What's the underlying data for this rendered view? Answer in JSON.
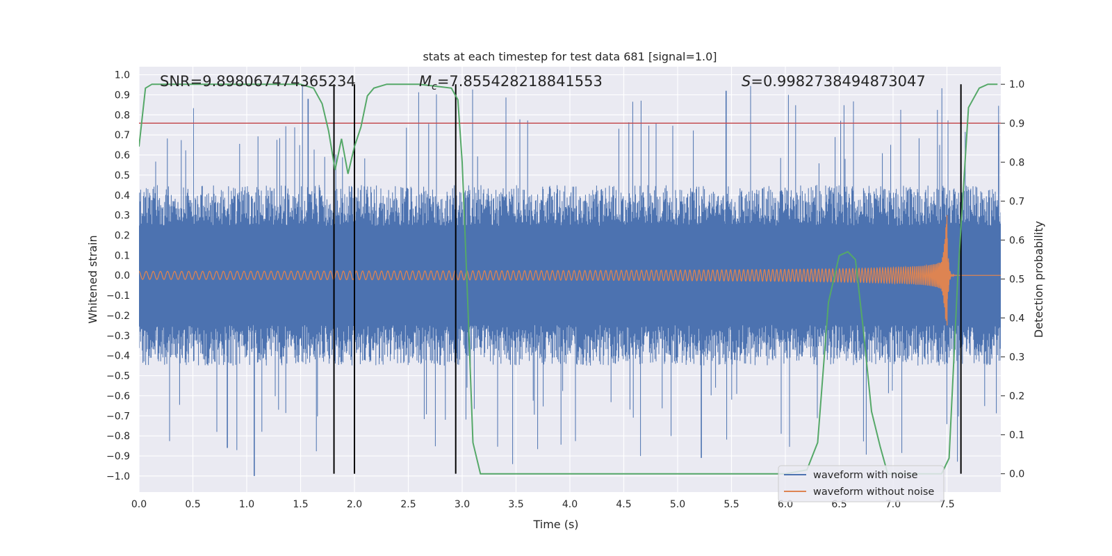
{
  "chart_data": {
    "type": "line",
    "title": "stats at each timestep for test data 681 [signal=1.0]",
    "xlabel": "Time (s)",
    "ylabel": "Whitened strain",
    "y2label": "Detection probability",
    "xlim": [
      0.0,
      8.0
    ],
    "ylim": [
      -1.08,
      1.04
    ],
    "y2lim": [
      -0.047,
      1.045
    ],
    "xticks": [
      "0.0",
      "0.5",
      "1.0",
      "1.5",
      "2.0",
      "2.5",
      "3.0",
      "3.5",
      "4.0",
      "4.5",
      "5.0",
      "5.5",
      "6.0",
      "6.5",
      "7.0",
      "7.5"
    ],
    "yticks": [
      "1.0",
      "0.9",
      "0.8",
      "0.7",
      "0.6",
      "0.5",
      "0.4",
      "0.3",
      "0.2",
      "0.1",
      "0.0",
      "−0.1",
      "−0.2",
      "−0.3",
      "−0.4",
      "−0.5",
      "−0.6",
      "−0.7",
      "−0.8",
      "−0.9",
      "−1.0"
    ],
    "y2ticks": [
      "1.0",
      "0.9",
      "0.8",
      "0.7",
      "0.6",
      "0.5",
      "0.4",
      "0.3",
      "0.2",
      "0.1",
      "0.0"
    ],
    "stats": {
      "snr_label": "SNR=9.898067474365234",
      "mc_prefix": "M",
      "mc_sub": "c",
      "mc_value": "=7.855428218841553",
      "s_prefix": "S",
      "s_value": "=0.9982738494873047"
    },
    "series": [
      {
        "name": "waveform with noise",
        "color": "#4c72b0",
        "kind": "noise",
        "amplitude_typical": 0.45,
        "amplitude_peak": 1.0
      },
      {
        "name": "waveform without noise",
        "color": "#dd8452",
        "kind": "chirp",
        "t_merger": 7.5,
        "peak_amplitude": 0.3,
        "initial_amplitude": 0.02
      },
      {
        "name": "detection probability",
        "color": "#55a868",
        "axis": "right",
        "x": [
          0.0,
          0.06,
          0.12,
          0.5,
          1.0,
          1.5,
          1.62,
          1.7,
          1.76,
          1.82,
          1.88,
          1.94,
          2.0,
          2.06,
          2.12,
          2.18,
          2.3,
          2.6,
          2.9,
          2.96,
          3.0,
          3.05,
          3.1,
          3.17,
          3.25,
          4.0,
          5.0,
          6.0,
          6.2,
          6.3,
          6.4,
          6.5,
          6.58,
          6.65,
          6.72,
          6.8,
          6.88,
          6.95,
          7.05,
          7.15,
          7.2,
          7.35,
          7.45,
          7.52,
          7.6,
          7.7,
          7.8,
          7.88,
          7.97
        ],
        "y": [
          0.84,
          0.99,
          1.0,
          1.0,
          1.0,
          1.0,
          0.99,
          0.95,
          0.88,
          0.78,
          0.86,
          0.77,
          0.84,
          0.89,
          0.97,
          0.99,
          1.0,
          1.0,
          0.99,
          0.96,
          0.8,
          0.45,
          0.08,
          0.0,
          0.0,
          0.0,
          0.0,
          0.0,
          0.01,
          0.08,
          0.44,
          0.56,
          0.57,
          0.55,
          0.38,
          0.16,
          0.07,
          0.0,
          0.0,
          0.0,
          0.0,
          0.0,
          0.0,
          0.04,
          0.5,
          0.94,
          0.99,
          1.0,
          1.0
        ]
      }
    ],
    "threshold_line": {
      "value": 0.9,
      "axis": "right",
      "color": "#c44e52"
    },
    "vertical_lines": [
      1.81,
      2.0,
      2.94,
      7.63
    ],
    "legend": {
      "position": "lower-right",
      "entries": [
        "waveform with noise",
        "waveform without noise"
      ]
    }
  }
}
